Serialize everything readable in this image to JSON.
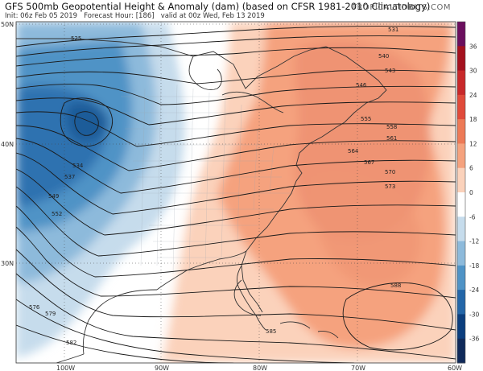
{
  "header": {
    "title": "GFS 500mb Geopotential Height & Anomaly (dam) (based on CFSR 1981-2010 Climatology)",
    "init": "Init: 06z Feb 05 2019",
    "forecast": "Forecast Hour: [186]",
    "valid": "valid at 00z Wed, Feb 13 2019",
    "brand": "TROPICALTIDBITS.COM"
  },
  "map": {
    "lat_labels": [
      "50N",
      "40N",
      "30N"
    ],
    "lon_labels": [
      "100W",
      "90W",
      "80W",
      "70W",
      "60W"
    ]
  },
  "colorbar": {
    "labels": [
      "36",
      "30",
      "24",
      "18",
      "12",
      "6",
      "0",
      "-6",
      "-12",
      "-18",
      "-24",
      "-30",
      "-36"
    ],
    "colors": [
      "#6b0f5e",
      "#a4111e",
      "#c8282a",
      "#e04a3a",
      "#ed7a57",
      "#f5a27e",
      "#fbd2bb",
      "#ffffff",
      "#c6dcec",
      "#8dbadb",
      "#4f93c6",
      "#2366a8",
      "#0b3e7e",
      "#102a5a"
    ]
  },
  "contours": {
    "labels": [
      "525",
      "531",
      "534",
      "537",
      "540",
      "543",
      "546",
      "549",
      "552",
      "555",
      "558",
      "561",
      "564",
      "567",
      "570",
      "573",
      "576",
      "579",
      "582",
      "585",
      "588"
    ]
  }
}
